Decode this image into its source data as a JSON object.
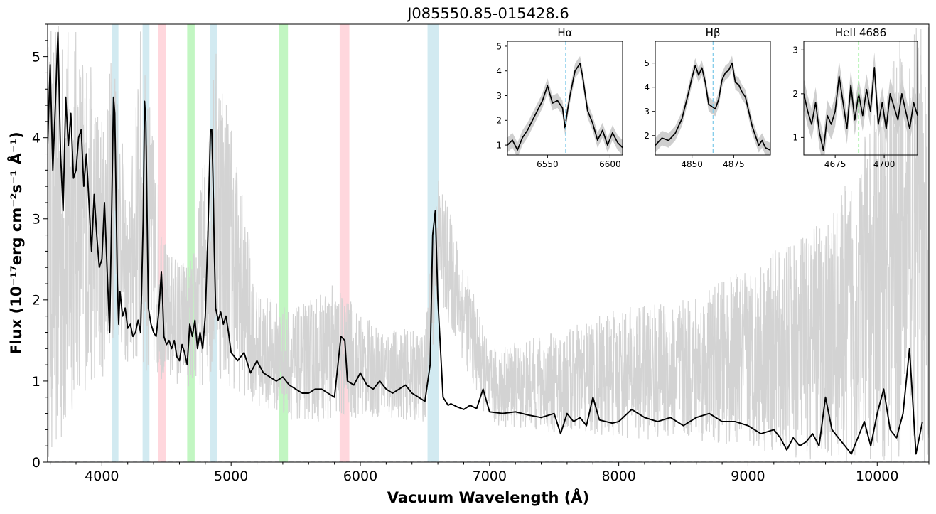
{
  "chart_data": [
    {
      "type": "line",
      "title": "J085550.85-015428.6",
      "xlabel": "Vacuum Wavelength (Å)",
      "ylabel": "Flux (10⁻¹⁷erg cm⁻²s⁻¹ Å⁻¹)",
      "xlim": [
        3580,
        10400
      ],
      "ylim": [
        0,
        5.4
      ],
      "xticks": [
        4000,
        5000,
        6000,
        7000,
        8000,
        9000,
        10000
      ],
      "xtick_labels": [
        "4000",
        "5000",
        "6000",
        "7000",
        "8000",
        "9000",
        "10000"
      ],
      "yticks": [
        0,
        1,
        2,
        3,
        4,
        5
      ],
      "ytick_labels": [
        "0",
        "1",
        "2",
        "3",
        "4",
        "5"
      ],
      "grid": false,
      "zero_line": {
        "y": 0,
        "style": "dashed",
        "color": "#8a8fa8"
      },
      "shaded_bands": [
        {
          "x0": 4075,
          "x1": 4128,
          "color": "#add8e6"
        },
        {
          "x0": 4315,
          "x1": 4368,
          "color": "#add8e6"
        },
        {
          "x0": 4437,
          "x1": 4495,
          "color": "#ffb6c1"
        },
        {
          "x0": 4660,
          "x1": 4718,
          "color": "#90ee90"
        },
        {
          "x0": 4835,
          "x1": 4890,
          "color": "#add8e6"
        },
        {
          "x0": 5370,
          "x1": 5440,
          "color": "#90ee90"
        },
        {
          "x0": 5840,
          "x1": 5915,
          "color": "#ffb6c1"
        },
        {
          "x0": 6520,
          "x1": 6610,
          "color": "#add8e6"
        }
      ],
      "series": [
        {
          "color": "#000000",
          "role": "smoothed flux",
          "x": [
            3580,
            3600,
            3620,
            3640,
            3660,
            3680,
            3700,
            3720,
            3740,
            3760,
            3780,
            3800,
            3820,
            3840,
            3860,
            3880,
            3900,
            3920,
            3940,
            3960,
            3980,
            4000,
            4020,
            4040,
            4060,
            4080,
            4090,
            4100,
            4110,
            4120,
            4130,
            4140,
            4160,
            4180,
            4200,
            4220,
            4240,
            4260,
            4280,
            4300,
            4320,
            4330,
            4340,
            4350,
            4360,
            4380,
            4400,
            4420,
            4440,
            4460,
            4470,
            4480,
            4500,
            4520,
            4540,
            4560,
            4580,
            4600,
            4620,
            4640,
            4660,
            4680,
            4700,
            4720,
            4740,
            4760,
            4780,
            4800,
            4820,
            4840,
            4850,
            4860,
            4870,
            4880,
            4900,
            4920,
            4940,
            4960,
            4980,
            5000,
            5050,
            5100,
            5150,
            5200,
            5250,
            5300,
            5350,
            5400,
            5450,
            5500,
            5550,
            5600,
            5650,
            5700,
            5750,
            5800,
            5850,
            5880,
            5900,
            5950,
            6000,
            6050,
            6100,
            6150,
            6200,
            6250,
            6300,
            6350,
            6400,
            6450,
            6500,
            6540,
            6560,
            6580,
            6600,
            6640,
            6680,
            6700,
            6750,
            6800,
            6850,
            6900,
            6950,
            7000,
            7100,
            7200,
            7300,
            7400,
            7500,
            7550,
            7600,
            7650,
            7700,
            7750,
            7800,
            7850,
            7900,
            7950,
            8000,
            8100,
            8200,
            8300,
            8400,
            8500,
            8600,
            8700,
            8800,
            8900,
            9000,
            9100,
            9200,
            9250,
            9300,
            9350,
            9400,
            9450,
            9500,
            9550,
            9600,
            9650,
            9700,
            9750,
            9800,
            9850,
            9900,
            9950,
            10000,
            10050,
            10100,
            10150,
            10200,
            10250,
            10300,
            10350
          ],
          "y": [
            3.9,
            4.9,
            3.6,
            4.4,
            5.3,
            3.8,
            3.1,
            4.5,
            3.9,
            4.3,
            3.5,
            3.6,
            4.0,
            4.1,
            3.4,
            3.8,
            3.2,
            2.6,
            3.3,
            2.8,
            2.4,
            2.5,
            3.2,
            2.4,
            1.6,
            3.5,
            4.5,
            4.3,
            3.2,
            2.2,
            1.7,
            2.1,
            1.8,
            1.9,
            1.65,
            1.7,
            1.55,
            1.6,
            1.75,
            1.6,
            3.0,
            4.45,
            4.2,
            3.0,
            1.9,
            1.7,
            1.6,
            1.55,
            1.85,
            2.35,
            2.0,
            1.55,
            1.45,
            1.5,
            1.4,
            1.5,
            1.3,
            1.25,
            1.45,
            1.35,
            1.2,
            1.7,
            1.55,
            1.75,
            1.4,
            1.6,
            1.4,
            1.8,
            2.8,
            4.1,
            4.1,
            3.5,
            2.6,
            1.9,
            1.75,
            1.85,
            1.7,
            1.8,
            1.6,
            1.35,
            1.25,
            1.35,
            1.1,
            1.25,
            1.1,
            1.05,
            1.0,
            1.05,
            0.95,
            0.9,
            0.85,
            0.85,
            0.9,
            0.9,
            0.85,
            0.8,
            1.55,
            1.5,
            1.0,
            0.95,
            1.1,
            0.95,
            0.9,
            1.0,
            0.9,
            0.85,
            0.9,
            0.95,
            0.85,
            0.8,
            0.75,
            1.2,
            2.8,
            3.1,
            2.0,
            0.8,
            0.7,
            0.72,
            0.68,
            0.65,
            0.7,
            0.66,
            0.9,
            0.62,
            0.6,
            0.62,
            0.58,
            0.55,
            0.6,
            0.35,
            0.6,
            0.5,
            0.55,
            0.45,
            0.8,
            0.52,
            0.5,
            0.48,
            0.5,
            0.65,
            0.55,
            0.5,
            0.55,
            0.45,
            0.55,
            0.6,
            0.5,
            0.5,
            0.45,
            0.35,
            0.4,
            0.3,
            0.15,
            0.3,
            0.2,
            0.25,
            0.35,
            0.2,
            0.8,
            0.4,
            0.3,
            0.2,
            0.1,
            0.3,
            0.5,
            0.2,
            0.6,
            0.9,
            0.4,
            0.3,
            0.6,
            1.4,
            0.1,
            0.5
          ]
        },
        {
          "color": "#d3d3d3",
          "role": "raw flux noise envelope",
          "x": [
            3580,
            3700,
            3800,
            3900,
            4000,
            4100,
            4200,
            4300,
            4500,
            4700,
            4900,
            5200,
            5500,
            5800,
            6100,
            6500,
            6600,
            7000,
            7500,
            8000,
            8500,
            9000,
            9400,
            9700,
            10000,
            10200,
            10400
          ],
          "lower": [
            0.0,
            0.0,
            0.8,
            0.9,
            1.0,
            1.6,
            1.1,
            1.1,
            1.0,
            0.9,
            1.0,
            0.7,
            0.5,
            0.5,
            0.55,
            0.5,
            2.0,
            0.45,
            0.35,
            0.3,
            0.25,
            0.2,
            0.0,
            0.0,
            0.0,
            0.0,
            0.0
          ],
          "upper": [
            5.4,
            5.4,
            5.4,
            5.0,
            4.3,
            5.4,
            3.0,
            5.4,
            2.6,
            2.5,
            5.4,
            2.1,
            1.9,
            2.2,
            1.7,
            1.6,
            3.6,
            1.4,
            1.6,
            1.9,
            2.0,
            2.4,
            2.8,
            3.2,
            4.4,
            5.4,
            5.4
          ]
        }
      ]
    },
    {
      "type": "line",
      "title": "Hα",
      "xlim": [
        6518,
        6610
      ],
      "ylim": [
        0.6,
        5.2
      ],
      "xticks": [
        6550,
        6600
      ],
      "xtick_labels": [
        "6550",
        "6600"
      ],
      "yticks": [
        1,
        2,
        3,
        4,
        5
      ],
      "ytick_labels": [
        "1",
        "2",
        "3",
        "4",
        "5"
      ],
      "reference_line": {
        "x": 6564.6,
        "color": "#87ceeb",
        "style": "dashed"
      },
      "series": [
        {
          "color": "#000000",
          "x": [
            6518,
            6522,
            6526,
            6530,
            6534,
            6538,
            6542,
            6546,
            6550,
            6554,
            6558,
            6562,
            6564,
            6566,
            6568,
            6572,
            6576,
            6578,
            6582,
            6586,
            6590,
            6594,
            6598,
            6602,
            6606,
            6610
          ],
          "y": [
            1.0,
            1.2,
            0.8,
            1.3,
            1.6,
            2.0,
            2.4,
            2.8,
            3.4,
            2.7,
            2.8,
            2.5,
            1.7,
            2.4,
            3.0,
            4.0,
            4.3,
            3.8,
            2.4,
            1.9,
            1.2,
            1.6,
            1.0,
            1.5,
            1.1,
            0.9
          ],
          "band": 0.3
        }
      ]
    },
    {
      "type": "line",
      "title": "Hβ",
      "xlim": [
        4828,
        4897
      ],
      "ylim": [
        1.2,
        5.9
      ],
      "xticks": [
        4850,
        4875
      ],
      "xtick_labels": [
        "4850",
        "4875"
      ],
      "yticks": [
        2,
        3,
        4,
        5
      ],
      "ytick_labels": [
        "2",
        "3",
        "4",
        "5"
      ],
      "reference_line": {
        "x": 4862.7,
        "color": "#87ceeb",
        "style": "dashed"
      },
      "series": [
        {
          "color": "#000000",
          "x": [
            4828,
            4832,
            4836,
            4840,
            4844,
            4848,
            4850,
            4852,
            4854,
            4856,
            4858,
            4860,
            4862,
            4864,
            4866,
            4868,
            4870,
            4872,
            4874,
            4876,
            4878,
            4880,
            4882,
            4884,
            4886,
            4888,
            4890,
            4892,
            4894,
            4897
          ],
          "y": [
            1.6,
            1.9,
            1.8,
            2.1,
            2.7,
            3.8,
            4.4,
            4.9,
            4.5,
            4.8,
            4.2,
            3.3,
            3.2,
            3.1,
            3.5,
            4.3,
            4.6,
            4.7,
            5.0,
            4.2,
            4.1,
            3.8,
            3.6,
            3.0,
            2.4,
            2.0,
            1.6,
            1.8,
            1.5,
            1.4
          ],
          "band": 0.3
        }
      ]
    },
    {
      "type": "line",
      "title": "HeII 4686",
      "xlim": [
        4659,
        4717
      ],
      "ylim": [
        0.6,
        3.2
      ],
      "xticks": [
        4675,
        4700
      ],
      "xtick_labels": [
        "4675",
        "4700"
      ],
      "yticks": [
        1,
        2,
        3
      ],
      "ytick_labels": [
        "1",
        "2",
        "3"
      ],
      "reference_line": {
        "x": 4687,
        "color": "#90ee90",
        "style": "dashed"
      },
      "series": [
        {
          "color": "#000000",
          "x": [
            4659,
            4661,
            4663,
            4665,
            4667,
            4669,
            4671,
            4673,
            4675,
            4677,
            4679,
            4681,
            4683,
            4685,
            4687,
            4689,
            4691,
            4693,
            4695,
            4697,
            4699,
            4701,
            4703,
            4705,
            4707,
            4709,
            4711,
            4713,
            4715,
            4717
          ],
          "y": [
            2.0,
            1.6,
            1.3,
            1.8,
            1.1,
            0.7,
            1.5,
            1.3,
            1.6,
            2.4,
            1.8,
            1.2,
            2.2,
            1.4,
            2.0,
            1.5,
            2.1,
            1.6,
            2.6,
            1.3,
            1.8,
            1.2,
            2.0,
            1.7,
            1.4,
            2.0,
            1.6,
            1.2,
            1.8,
            1.5
          ],
          "band": 0.35
        }
      ]
    }
  ]
}
